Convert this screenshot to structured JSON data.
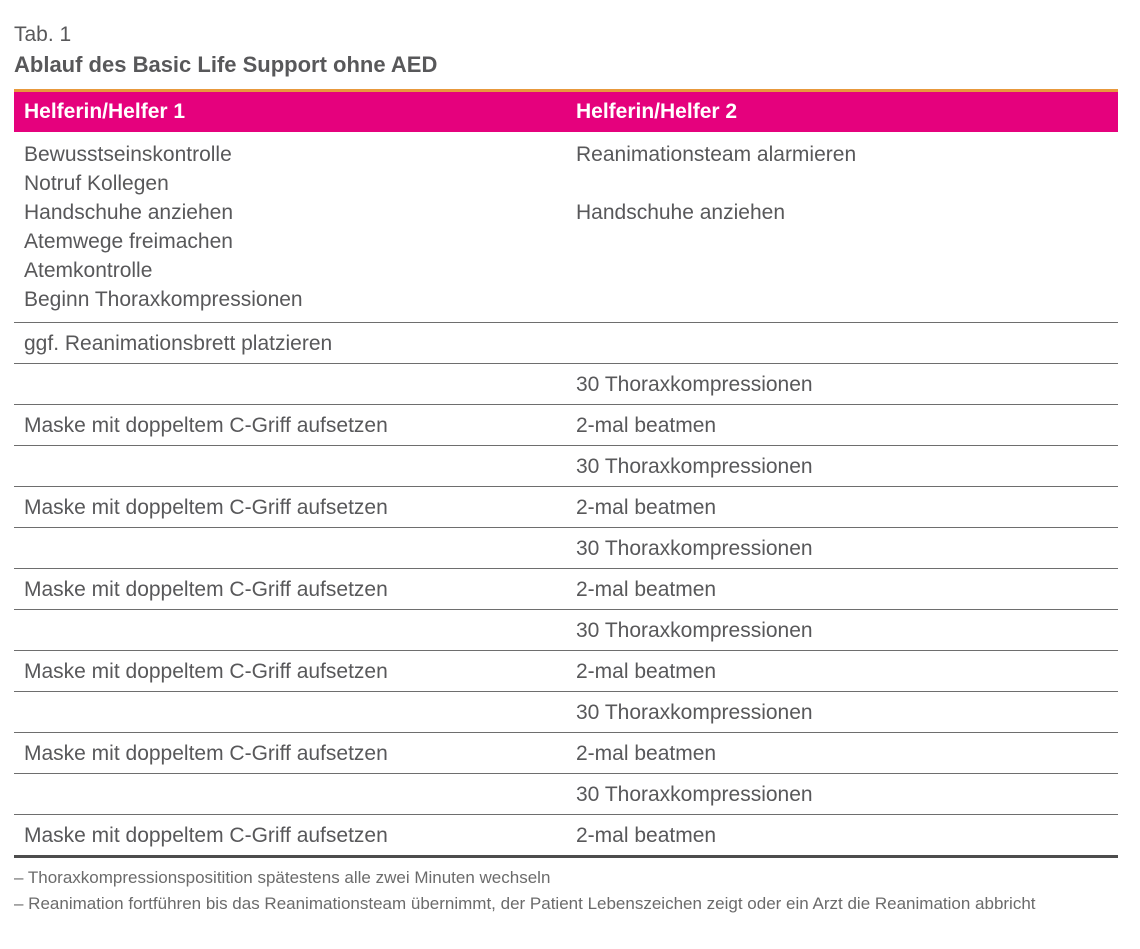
{
  "caption": {
    "number": "Tab. 1",
    "title": "Ablauf des Basic Life Support ohne AED"
  },
  "table": {
    "columns": [
      "Helferin/Helfer 1",
      "Helferin/Helfer 2"
    ],
    "rows": [
      {
        "left": [
          "Bewusstseinskontrolle",
          "Notruf Kollegen",
          "Handschuhe anziehen",
          "Atemwege freimachen",
          "Atemkontrolle",
          "Beginn Thoraxkompressionen"
        ],
        "right": [
          "Reanimationsteam alarmieren",
          "",
          "Handschuhe anziehen"
        ]
      },
      {
        "left": [
          "ggf. Reanimationsbrett platzieren"
        ],
        "right": []
      },
      {
        "left": [],
        "right": [
          "30 Thoraxkompressionen"
        ]
      },
      {
        "left": [
          "Maske mit doppeltem C-Griff aufsetzen"
        ],
        "right": [
          "2-mal beatmen"
        ]
      },
      {
        "left": [],
        "right": [
          "30 Thoraxkompressionen"
        ]
      },
      {
        "left": [
          "Maske mit doppeltem C-Griff aufsetzen"
        ],
        "right": [
          "2-mal beatmen"
        ]
      },
      {
        "left": [],
        "right": [
          "30 Thoraxkompressionen"
        ]
      },
      {
        "left": [
          "Maske mit doppeltem C-Griff aufsetzen"
        ],
        "right": [
          "2-mal beatmen"
        ]
      },
      {
        "left": [],
        "right": [
          "30 Thoraxkompressionen"
        ]
      },
      {
        "left": [
          "Maske mit doppeltem C-Griff aufsetzen"
        ],
        "right": [
          "2-mal beatmen"
        ]
      },
      {
        "left": [],
        "right": [
          "30 Thoraxkompressionen"
        ]
      },
      {
        "left": [
          "Maske mit doppeltem C-Griff aufsetzen"
        ],
        "right": [
          "2-mal beatmen"
        ]
      },
      {
        "left": [],
        "right": [
          "30 Thoraxkompressionen"
        ]
      },
      {
        "left": [
          "Maske mit doppeltem C-Griff aufsetzen"
        ],
        "right": [
          "2-mal beatmen"
        ]
      }
    ]
  },
  "footnotes": [
    "– Thoraxkompressionspositition spätestens alle zwei Minuten wechseln",
    "– Reanimation fortführen bis das Reanimationsteam übernimmt, der Patient Lebenszeichen zeigt oder ein Arzt die Reanimation abbricht"
  ],
  "colors": {
    "header_bg": "#E5017D",
    "accent_bar": "#E8993C",
    "body_text": "#58585A",
    "divider": "#6E6E6E",
    "table_bottom_border": "#4D4D4D",
    "footnote_text": "#6B6B6B",
    "header_text": "#FFFFFF"
  }
}
